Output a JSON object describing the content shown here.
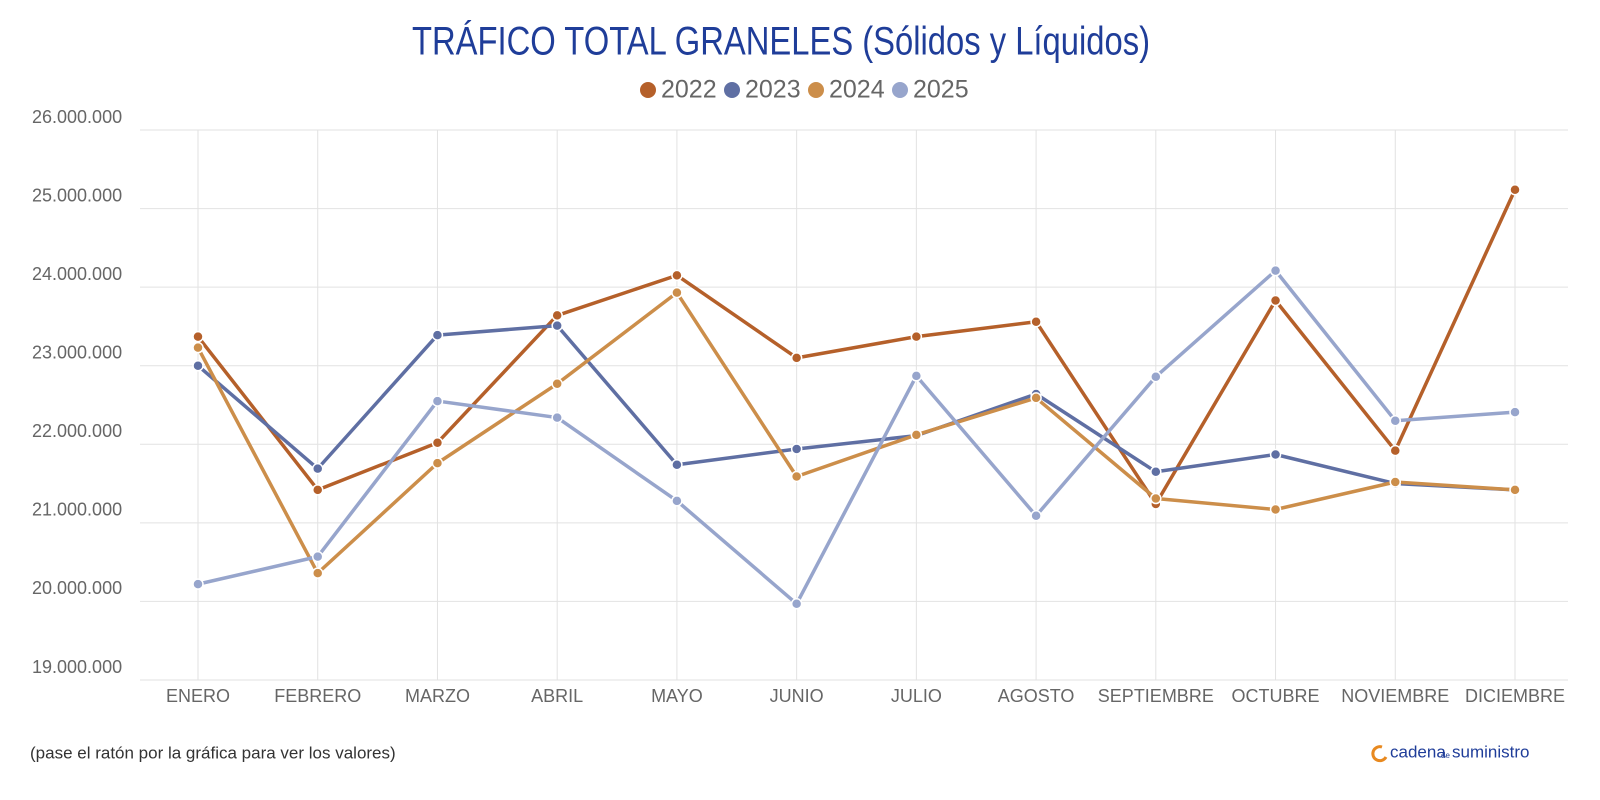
{
  "chart_data": {
    "type": "line",
    "title": "TRÁFICO TOTAL GRANELES (Sólidos y Líquidos)",
    "categories": [
      "ENERO",
      "FEBRERO",
      "MARZO",
      "ABRIL",
      "MAYO",
      "JUNIO",
      "JULIO",
      "AGOSTO",
      "SEPTIEMBRE",
      "OCTUBRE",
      "NOVIEMBRE",
      "DICIEMBRE"
    ],
    "series": [
      {
        "name": "2022",
        "color": "#b5602a",
        "values": [
          23370000,
          21420000,
          22020000,
          23640000,
          24150000,
          23100000,
          23370000,
          23560000,
          21240000,
          23830000,
          21920000,
          25240000
        ]
      },
      {
        "name": "2023",
        "color": "#5f6fa3",
        "values": [
          23000000,
          21690000,
          23390000,
          23510000,
          21740000,
          21940000,
          22110000,
          22640000,
          21650000,
          21870000,
          21500000,
          21420000
        ]
      },
      {
        "name": "2024",
        "color": "#cc8e4a",
        "values": [
          23230000,
          20360000,
          21760000,
          22770000,
          23930000,
          21590000,
          22120000,
          22590000,
          21310000,
          21170000,
          21520000,
          21420000
        ]
      },
      {
        "name": "2025",
        "color": "#97a5cc",
        "values": [
          20220000,
          20570000,
          22550000,
          22340000,
          21280000,
          19970000,
          22870000,
          21090000,
          22860000,
          24210000,
          22300000,
          22410000
        ]
      }
    ],
    "ylim": [
      19000000,
      26000000
    ],
    "yticks": [
      {
        "value": 19000000,
        "label": "19.000.000"
      },
      {
        "value": 20000000,
        "label": "20.000.000"
      },
      {
        "value": 21000000,
        "label": "21.000.000"
      },
      {
        "value": 22000000,
        "label": "22.000.000"
      },
      {
        "value": 23000000,
        "label": "23.000.000"
      },
      {
        "value": 24000000,
        "label": "24.000.000"
      },
      {
        "value": 25000000,
        "label": "25.000.000"
      },
      {
        "value": 26000000,
        "label": "26.000.000"
      }
    ],
    "grid": true,
    "legend": "top"
  },
  "footer_note": "(pase el ratón por la gráfica para ver los valores)",
  "logo": {
    "parts": [
      "cadena",
      "de",
      "suministro"
    ]
  }
}
